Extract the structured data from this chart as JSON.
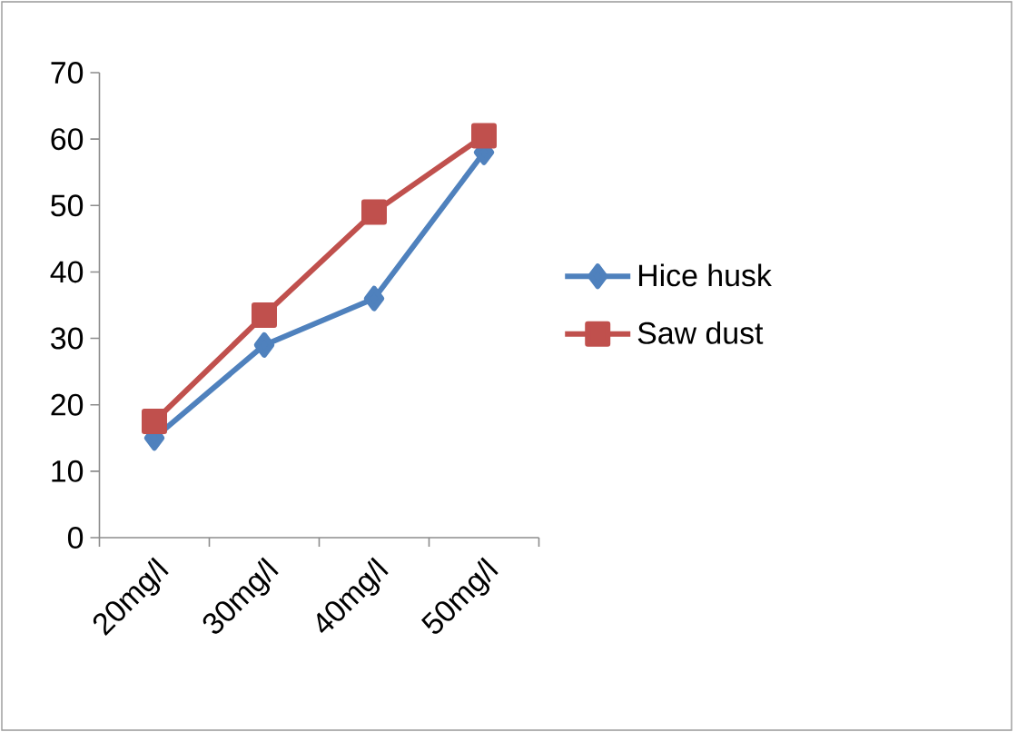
{
  "chart_data": {
    "type": "line",
    "categories": [
      "20mg/l",
      "30mg/l",
      "40mg/l",
      "50mg/l"
    ],
    "series": [
      {
        "name": "Hice husk",
        "color": "#4f81bd",
        "marker": "diamond",
        "values": [
          15,
          29,
          36,
          58
        ]
      },
      {
        "name": "Saw dust",
        "color": "#c0504d",
        "marker": "square",
        "values": [
          17.5,
          33.5,
          49,
          60.5
        ]
      }
    ],
    "ylim": [
      0,
      70
    ],
    "yticks": [
      0,
      10,
      20,
      30,
      40,
      50,
      60,
      70
    ],
    "grid": false,
    "legend": "right",
    "line_style": "solid"
  }
}
